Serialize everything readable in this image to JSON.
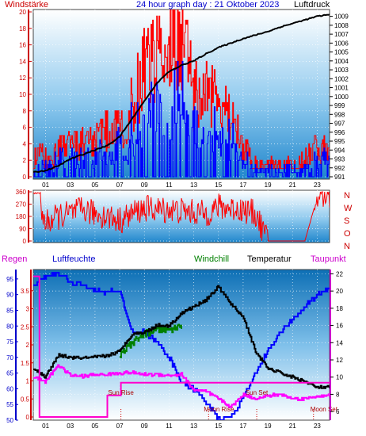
{
  "header": {
    "left_label": "Windstärke",
    "title": "24 hour graph day : 21 Oktober 2023",
    "right_label": "Luftdruck"
  },
  "panel1_axes": {
    "left_ticks": [
      "0",
      "2",
      "4",
      "6",
      "8",
      "10",
      "12",
      "14",
      "16",
      "18",
      "20"
    ],
    "right_ticks": [
      "991",
      "992",
      "993",
      "994",
      "995",
      "996",
      "997",
      "998",
      "999",
      "1000",
      "1001",
      "1002",
      "1003",
      "1004",
      "1005",
      "1006",
      "1007",
      "1008",
      "1009"
    ],
    "hour_ticks": [
      "01",
      "03",
      "05",
      "07",
      "09",
      "11",
      "13",
      "15",
      "17",
      "19",
      "21",
      "23"
    ]
  },
  "panel2_axes": {
    "left_ticks": [
      "0",
      "90",
      "180",
      "270",
      "360"
    ],
    "right_letters": [
      "N",
      "W",
      "S",
      "O",
      "N"
    ]
  },
  "panel3_header": {
    "regen": "Regen",
    "luftfeuchte": "Luftfeuchte",
    "windchill": "Windchill",
    "temperatur": "Temperatur",
    "taupunkt": "Taupunkt"
  },
  "panel3_axes": {
    "humidity_ticks": [
      "50",
      "55",
      "60",
      "65",
      "70",
      "75",
      "80",
      "85",
      "90",
      "95"
    ],
    "rain_ticks": [
      "0",
      "0.5",
      "1",
      "1.5",
      "2",
      "2.5",
      "3",
      "3.5"
    ],
    "temp_ticks": [
      "6",
      "8",
      "10",
      "12",
      "14",
      "16",
      "18",
      "20",
      "22"
    ],
    "hour_ticks": [
      "01",
      "03",
      "05",
      "07",
      "09",
      "11",
      "13",
      "15",
      "17",
      "19",
      "21",
      "23"
    ]
  },
  "events": {
    "sun_rise": "Sun Rise",
    "moon_rise": "Moon Rise",
    "sun_set": "Sun Set",
    "moon_set": "Moon Set"
  },
  "colors": {
    "wind_gust": "#ff0000",
    "wind_avg": "#0000ff",
    "pressure": "#000000",
    "direction": "#ff0000",
    "humidity": "#0000ff",
    "temperature": "#000000",
    "windchill": "#008000",
    "dewpoint": "#ff00ff",
    "rain": "#ff00cc",
    "left_axis_red": "#cc0000",
    "left_axis_blue": "#0000cc",
    "right_axis_magenta": "#cc00cc"
  },
  "chart_data": [
    {
      "type": "line",
      "series": [
        {
          "name": "Windstärke",
          "x": [
            0,
            1,
            2,
            3,
            4,
            5,
            6,
            7,
            8,
            9,
            10,
            11,
            12,
            13,
            14,
            15,
            16,
            17,
            18,
            19,
            20,
            21,
            22,
            23,
            24
          ],
          "values": [
            2,
            2,
            3,
            3,
            4,
            4,
            5,
            5,
            8,
            12,
            13,
            15,
            16,
            9,
            9,
            8,
            6,
            3,
            1,
            1,
            1,
            1,
            2,
            3,
            3
          ]
        },
        {
          "name": "Luftdruck",
          "x": [
            0,
            1,
            2,
            3,
            4,
            5,
            6,
            7,
            8,
            9,
            10,
            11,
            12,
            13,
            14,
            15,
            16,
            17,
            18,
            19,
            20,
            21,
            22,
            23,
            24
          ],
          "values": [
            991.5,
            991.7,
            992.2,
            993.0,
            993.5,
            994.0,
            994.5,
            995.5,
            997.5,
            999.5,
            1001.5,
            1002.8,
            1003.5,
            1004.0,
            1004.8,
            1005.5,
            1006.0,
            1006.5,
            1006.9,
            1007.3,
            1007.8,
            1008.2,
            1008.6,
            1009.0,
            1009.2
          ]
        }
      ],
      "xlim": [
        0,
        24
      ],
      "ylim": [
        0,
        20
      ],
      "ylim_right": [
        991,
        1009.5
      ],
      "grid": true
    },
    {
      "type": "line",
      "series": [
        {
          "name": "",
          "x": [
            0,
            1,
            2,
            3,
            4,
            5,
            6,
            7,
            8,
            9,
            10,
            11,
            12,
            13,
            14,
            15,
            16,
            17,
            18,
            19,
            20,
            21,
            22,
            23,
            24
          ],
          "values": [
            320,
            130,
            180,
            200,
            230,
            200,
            180,
            150,
            200,
            240,
            230,
            230,
            220,
            210,
            200,
            250,
            240,
            230,
            200,
            0,
            0,
            0,
            0,
            320,
            340
          ]
        }
      ],
      "xlim": [
        0,
        24
      ],
      "ylim": [
        0,
        360
      ],
      "grid": true
    },
    {
      "type": "line",
      "series": [
        {
          "name": "Luftfeuchte",
          "x": [
            0,
            1,
            2,
            3,
            4,
            5,
            6,
            7,
            8,
            9,
            10,
            11,
            12,
            13,
            14,
            15,
            16,
            17,
            18,
            19,
            20,
            21,
            22,
            23,
            24
          ],
          "values": [
            93,
            96,
            97,
            94,
            93,
            91,
            91,
            91,
            78,
            78,
            75,
            70,
            62,
            60,
            56,
            50,
            51,
            57,
            65,
            72,
            78,
            82,
            86,
            90,
            92
          ]
        },
        {
          "name": "Temperatur",
          "x": [
            0,
            1,
            2,
            3,
            4,
            5,
            6,
            7,
            8,
            9,
            10,
            11,
            12,
            13,
            14,
            15,
            16,
            17,
            18,
            19,
            20,
            21,
            22,
            23,
            24
          ],
          "values": [
            11,
            10,
            12.5,
            12.3,
            12.2,
            12.3,
            12.5,
            13,
            15,
            15.2,
            16,
            16,
            17.4,
            18.2,
            19,
            20.5,
            18.5,
            17,
            13,
            11,
            10.5,
            10,
            9.5,
            8.8,
            8.8
          ]
        },
        {
          "name": "Windchill",
          "x": [
            7,
            8,
            9,
            10,
            11,
            12
          ],
          "values": [
            12.5,
            14,
            15,
            15.5,
            15.5,
            16
          ]
        },
        {
          "name": "Taupunkt",
          "x": [
            0,
            1,
            2,
            3,
            4,
            5,
            6,
            7,
            8,
            9,
            10,
            11,
            12,
            13,
            14,
            15,
            16,
            17,
            18,
            19,
            20,
            21,
            22,
            23,
            24
          ],
          "values": [
            10,
            9.5,
            11.4,
            10.2,
            10.1,
            10.3,
            10.3,
            10.5,
            10.5,
            10.3,
            10.3,
            10.2,
            10.3,
            8.5,
            8.3,
            7.5,
            6.5,
            8,
            7.5,
            7.8,
            8,
            7.5,
            7.5,
            7.8,
            7.8
          ]
        },
        {
          "name": "Regen",
          "x": [
            0,
            0.4,
            0.5,
            1,
            5.9,
            6,
            7,
            7.1,
            24
          ],
          "values": [
            3.9,
            3.9,
            0,
            0,
            0,
            0.6,
            0.6,
            0.95,
            0.95
          ]
        }
      ],
      "xlim": [
        0,
        24
      ],
      "ylim": [
        50,
        98
      ],
      "ylim_rain": [
        0,
        4
      ],
      "ylim_temp": [
        5,
        22.5
      ],
      "grid": true
    }
  ]
}
